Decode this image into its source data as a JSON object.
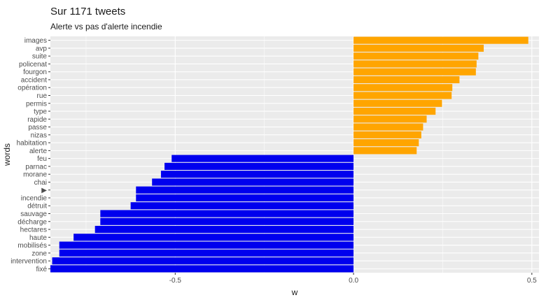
{
  "chart_data": {
    "type": "bar",
    "orientation": "horizontal",
    "title": "Sur 1171 tweets",
    "subtitle": "Alerte vs pas d'alerte incendie",
    "xlabel": "w",
    "ylabel": "words",
    "xlim": [
      -0.85,
      0.52
    ],
    "xticks": [
      -0.5,
      0.0,
      0.5
    ],
    "xtick_labels": [
      "-0.5",
      "0.0",
      "0.5"
    ],
    "grid": true,
    "colors": {
      "positive": "#FFA500",
      "negative": "#0000EE",
      "panel": "#EBEBEB",
      "grid": "#FFFFFF"
    },
    "categories": [
      "images",
      "avp",
      "suite",
      "policenat",
      "fourgon",
      "accident",
      "opération",
      "rue",
      "permis",
      "type",
      "rapide",
      "passe",
      "nizas",
      "habitation",
      "alerte",
      "feu",
      "parnac",
      "morane",
      "chai",
      "▶",
      "incendie",
      "détruit",
      "sauvage",
      "décharge",
      "hectares",
      "haute",
      "mobilisés",
      "zone",
      "intervention",
      "fixé"
    ],
    "values": [
      0.49,
      0.365,
      0.35,
      0.345,
      0.343,
      0.297,
      0.277,
      0.275,
      0.248,
      0.23,
      0.205,
      0.195,
      0.19,
      0.183,
      0.177,
      -0.51,
      -0.53,
      -0.54,
      -0.565,
      -0.61,
      -0.61,
      -0.625,
      -0.71,
      -0.71,
      -0.725,
      -0.785,
      -0.825,
      -0.825,
      -0.845,
      -0.85
    ]
  }
}
